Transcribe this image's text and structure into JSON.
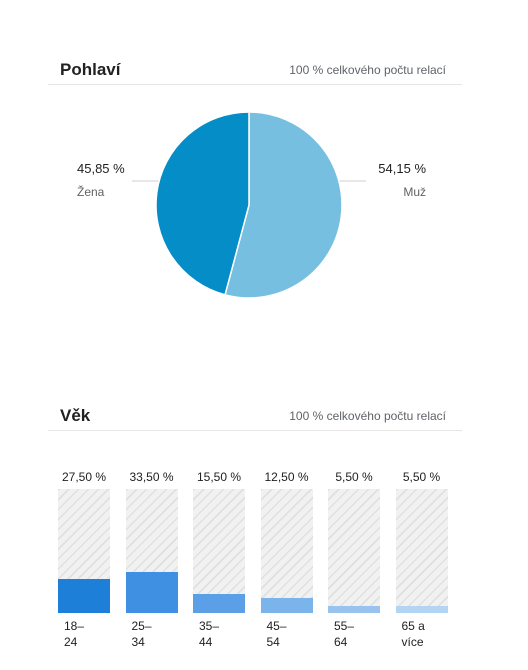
{
  "gender": {
    "title": "Pohlaví",
    "subtitle": "100 % celkového počtu relací"
  },
  "age": {
    "title": "Věk",
    "subtitle": "100 % celkového počtu relací"
  },
  "chart_data": [
    {
      "type": "pie",
      "title": "Pohlaví",
      "subtitle": "100 % celkového počtu relací",
      "slices": [
        {
          "label": "Žena",
          "value": 45.85,
          "display": "45,85 %",
          "color": "#058dc7"
        },
        {
          "label": "Muž",
          "value": 54.15,
          "display": "54,15 %",
          "color": "#76bfe0"
        }
      ]
    },
    {
      "type": "bar",
      "title": "Věk",
      "subtitle": "100 % celkového počtu relací",
      "categories": [
        [
          "18–",
          "24"
        ],
        [
          "25–",
          "34"
        ],
        [
          "35–",
          "44"
        ],
        [
          "45–",
          "54"
        ],
        [
          "55–",
          "64"
        ],
        [
          "65 a",
          "více"
        ]
      ],
      "values": [
        27.5,
        33.5,
        15.5,
        12.5,
        5.5,
        5.5
      ],
      "value_labels": [
        "27,50 %",
        "33,50 %",
        "15,50 %",
        "12,50 %",
        "5,50 %",
        "5,50 %"
      ],
      "colors": [
        "#1e7fd9",
        "#3f90e2",
        "#5ba0e6",
        "#7bb3eb",
        "#98c3ef",
        "#b3d4f3"
      ],
      "ylim": [
        0,
        100
      ]
    }
  ]
}
